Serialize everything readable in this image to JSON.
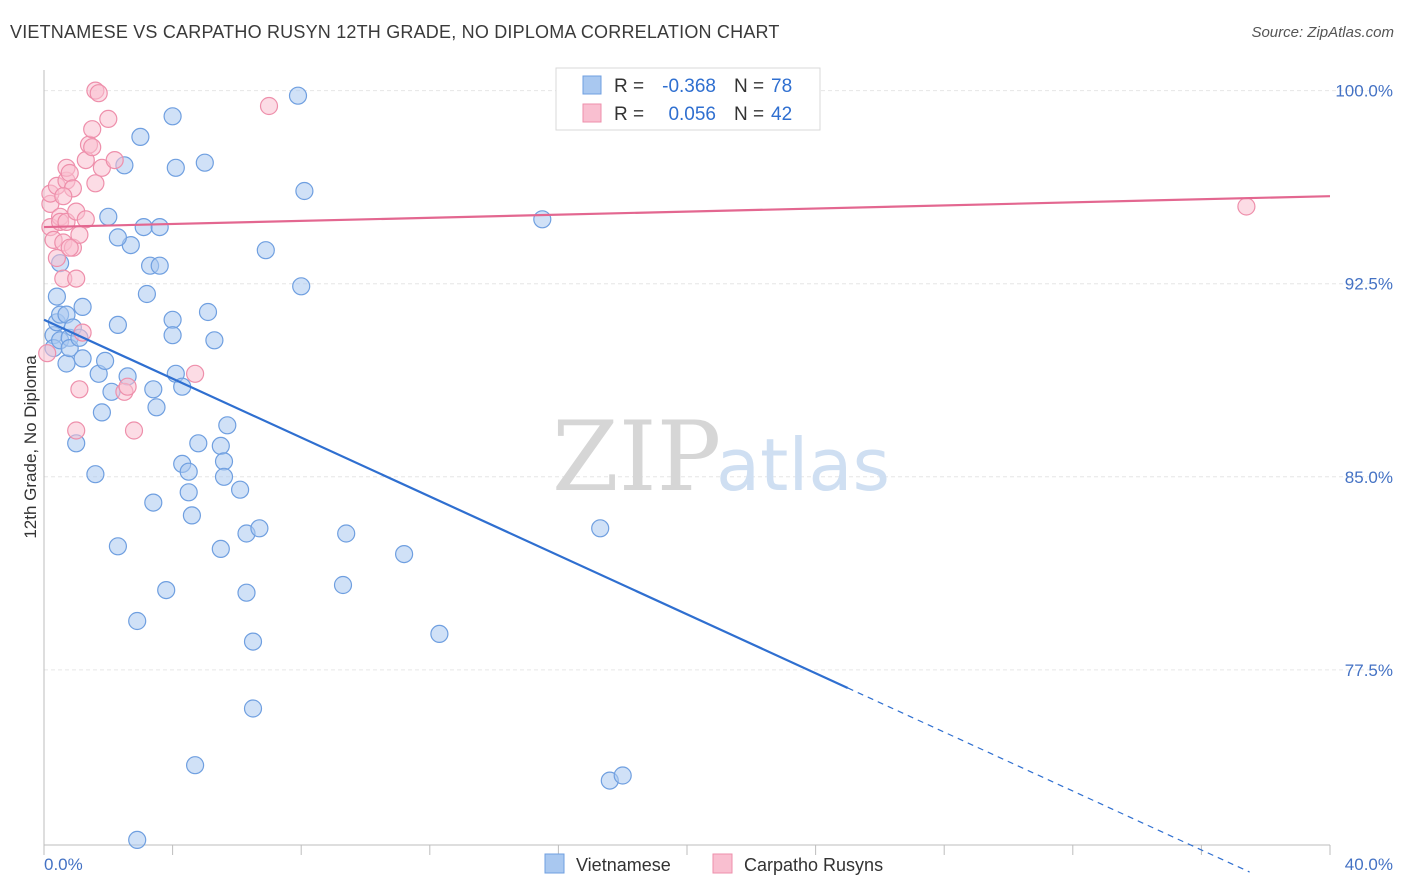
{
  "title": "VIETNAMESE VS CARPATHO RUSYN 12TH GRADE, NO DIPLOMA CORRELATION CHART",
  "source": "Source: ZipAtlas.com",
  "watermark": {
    "zip": "ZIP",
    "atlas": "atlas"
  },
  "legend": {
    "r_label": "R =",
    "n_label": "N =",
    "rows": [
      {
        "r": "-0.368",
        "n": "78",
        "color": "#a9c8f0",
        "stroke": "#6f9fe0"
      },
      {
        "r": "0.056",
        "n": "42",
        "color": "#f9bfd0",
        "stroke": "#ee8fab"
      }
    ]
  },
  "bottom_legend": [
    "Vietnamese",
    "Carpatho Rusyns"
  ],
  "chart_data": {
    "type": "scatter",
    "ylabel": "12th Grade, No Diploma",
    "xlim": [
      0,
      40
    ],
    "ylim": [
      70.7,
      100.8
    ],
    "y_ticks": [
      {
        "v": 100,
        "label": "100.0%"
      },
      {
        "v": 92.5,
        "label": "92.5%"
      },
      {
        "v": 85,
        "label": "85.0%"
      },
      {
        "v": 77.5,
        "label": "77.5%"
      }
    ],
    "x_tick_labels": {
      "left": "0.0%",
      "right": "40.0%"
    },
    "grid": true,
    "series": [
      {
        "name": "Vietnamese",
        "color": "#a9c8f0",
        "stroke": "#6f9fe0",
        "line_color": "#2f6fd0",
        "trend": {
          "x0": 0,
          "y0": 91.1,
          "x1": 25.0,
          "y1": 76.8,
          "dash_x_end": 37.5
        },
        "points": [
          [
            0.3,
            90.5
          ],
          [
            0.3,
            90.0
          ],
          [
            0.4,
            91.0
          ],
          [
            0.4,
            92.0
          ],
          [
            0.5,
            91.3
          ],
          [
            0.5,
            90.3
          ],
          [
            0.5,
            93.3
          ],
          [
            0.7,
            89.4
          ],
          [
            0.7,
            91.3
          ],
          [
            0.8,
            90.4
          ],
          [
            0.8,
            90.0
          ],
          [
            0.9,
            90.8
          ],
          [
            1.1,
            90.4
          ],
          [
            1.2,
            91.6
          ],
          [
            1.2,
            89.6
          ],
          [
            1.7,
            89.0
          ],
          [
            1.9,
            89.5
          ],
          [
            2.1,
            88.3
          ],
          [
            2.3,
            90.9
          ],
          [
            2.6,
            88.9
          ],
          [
            2.7,
            94.0
          ],
          [
            3.2,
            92.1
          ],
          [
            3.3,
            93.2
          ],
          [
            3.4,
            88.4
          ],
          [
            3.5,
            87.7
          ],
          [
            3.6,
            93.2
          ],
          [
            4.0,
            91.1
          ],
          [
            4.0,
            90.5
          ],
          [
            4.1,
            89.0
          ],
          [
            4.3,
            88.5
          ],
          [
            4.3,
            85.5
          ],
          [
            4.5,
            85.2
          ],
          [
            4.5,
            84.4
          ],
          [
            4.8,
            86.3
          ],
          [
            5.1,
            91.4
          ],
          [
            5.3,
            90.3
          ],
          [
            5.5,
            86.2
          ],
          [
            5.6,
            85.6
          ],
          [
            5.7,
            87.0
          ],
          [
            6.1,
            84.5
          ],
          [
            6.3,
            82.8
          ],
          [
            6.7,
            83.0
          ],
          [
            6.9,
            93.8
          ],
          [
            5.6,
            85.0
          ],
          [
            3.4,
            84.0
          ],
          [
            1.0,
            86.3
          ],
          [
            1.6,
            85.1
          ],
          [
            1.8,
            87.5
          ],
          [
            2.3,
            82.3
          ],
          [
            2.9,
            79.4
          ],
          [
            3.8,
            80.6
          ],
          [
            4.6,
            83.5
          ],
          [
            5.5,
            82.2
          ],
          [
            6.3,
            80.5
          ],
          [
            6.5,
            78.6
          ],
          [
            6.5,
            76.0
          ],
          [
            4.7,
            73.8
          ],
          [
            2.9,
            70.9
          ],
          [
            9.4,
            82.8
          ],
          [
            9.3,
            80.8
          ],
          [
            11.2,
            82.0
          ],
          [
            12.3,
            78.9
          ],
          [
            17.3,
            83.0
          ],
          [
            17.6,
            73.2
          ],
          [
            18.0,
            73.4
          ],
          [
            15.5,
            95.0
          ],
          [
            8.0,
            92.4
          ],
          [
            8.1,
            96.1
          ],
          [
            2.0,
            95.1
          ],
          [
            2.3,
            94.3
          ],
          [
            3.1,
            94.7
          ],
          [
            3.6,
            94.7
          ],
          [
            4.1,
            97.0
          ],
          [
            5.0,
            97.2
          ],
          [
            2.5,
            97.1
          ],
          [
            3.0,
            98.2
          ],
          [
            4.0,
            99.0
          ],
          [
            7.9,
            99.8
          ]
        ]
      },
      {
        "name": "Carpatho Rusyns",
        "color": "#f9bfd0",
        "stroke": "#ee8fab",
        "line_color": "#e36790",
        "trend": {
          "x0": 0,
          "y0": 94.7,
          "x1": 40,
          "y1": 95.9
        },
        "points": [
          [
            0.1,
            89.8
          ],
          [
            0.2,
            94.7
          ],
          [
            0.2,
            95.6
          ],
          [
            0.2,
            96.0
          ],
          [
            0.3,
            94.2
          ],
          [
            0.4,
            96.3
          ],
          [
            0.4,
            93.5
          ],
          [
            0.5,
            95.1
          ],
          [
            0.5,
            94.9
          ],
          [
            0.6,
            94.1
          ],
          [
            0.6,
            92.7
          ],
          [
            0.7,
            94.9
          ],
          [
            0.7,
            96.5
          ],
          [
            0.7,
            97.0
          ],
          [
            0.8,
            96.8
          ],
          [
            0.9,
            96.2
          ],
          [
            0.9,
            93.9
          ],
          [
            1.0,
            95.3
          ],
          [
            1.0,
            92.7
          ],
          [
            1.1,
            94.4
          ],
          [
            1.3,
            97.3
          ],
          [
            1.4,
            97.9
          ],
          [
            1.5,
            98.5
          ],
          [
            1.6,
            96.4
          ],
          [
            1.6,
            100.0
          ],
          [
            1.7,
            99.9
          ],
          [
            1.8,
            97.0
          ],
          [
            2.0,
            98.9
          ],
          [
            2.2,
            97.3
          ],
          [
            2.5,
            88.3
          ],
          [
            2.6,
            88.5
          ],
          [
            2.8,
            86.8
          ],
          [
            1.2,
            90.6
          ],
          [
            4.7,
            89.0
          ],
          [
            7.0,
            99.4
          ],
          [
            37.4,
            95.5
          ],
          [
            1.0,
            86.8
          ],
          [
            1.1,
            88.4
          ],
          [
            0.8,
            93.9
          ],
          [
            1.3,
            95.0
          ],
          [
            1.5,
            97.8
          ],
          [
            0.6,
            95.9
          ]
        ]
      }
    ]
  }
}
